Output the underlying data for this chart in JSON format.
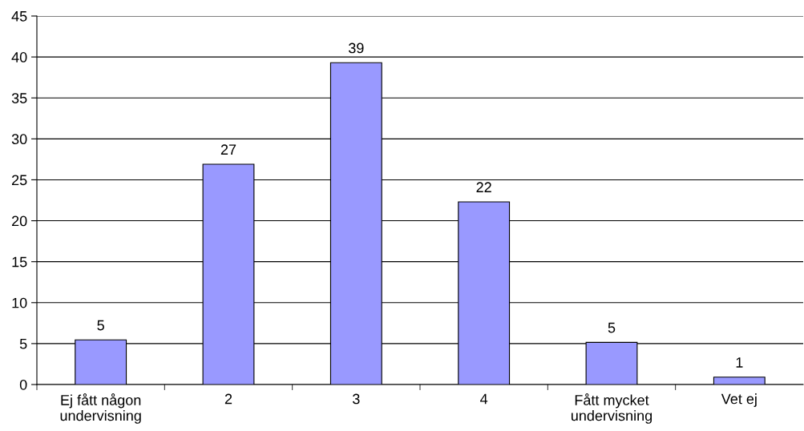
{
  "chart_data": {
    "type": "bar",
    "categories": [
      "Ej fått någon\nundervisning",
      "2",
      "3",
      "4",
      "Fått mycket\nundervisning",
      "Vet ej"
    ],
    "values": [
      5.45,
      26.9,
      39.3,
      22.3,
      5.15,
      0.9
    ],
    "value_labels": [
      "5",
      "27",
      "39",
      "22",
      "5",
      "1"
    ],
    "color": "#9999ff",
    "ylim": [
      0,
      45
    ],
    "yticks": [
      0,
      5,
      10,
      15,
      20,
      25,
      30,
      35,
      40,
      45
    ],
    "grid": "y",
    "legend": false
  }
}
